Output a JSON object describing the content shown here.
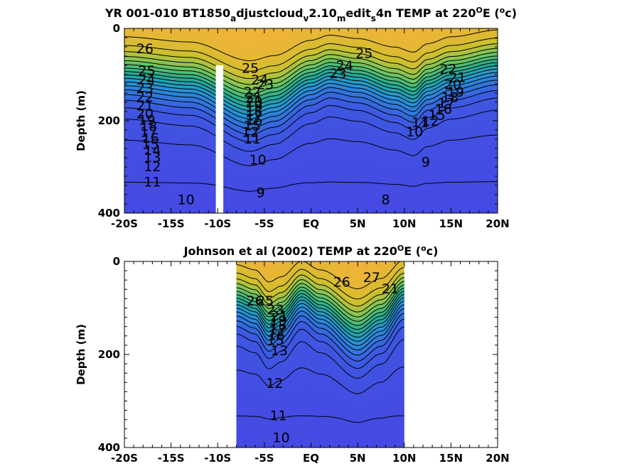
{
  "figure": {
    "colors": {
      "warm": "#f6b13a",
      "mid": "#25ad92",
      "cool": "#4747e3",
      "contour": "#000000"
    }
  },
  "chart_data": [
    {
      "type": "heatmap",
      "title_parts": [
        "YR 001-010 BT1850",
        "a",
        "djustcloud",
        "v",
        "2.10",
        "m",
        "edit",
        "s",
        "4n TEMP at 220",
        "O",
        "E (",
        "o",
        "c)"
      ],
      "ylabel": "Depth (m)",
      "x_ticks": [
        "-20S",
        "-15S",
        "-10S",
        "-5S",
        "EQ",
        "5N",
        "10N",
        "15N",
        "20N"
      ],
      "x_tick_values": [
        -20,
        -15,
        -10,
        -5,
        0,
        5,
        10,
        15,
        20
      ],
      "y_ticks": [
        "0",
        "200",
        "400"
      ],
      "y_tick_values": [
        0,
        200,
        400
      ],
      "xlim": [
        -20,
        20
      ],
      "ylim": [
        0,
        400
      ],
      "y_reversed": true,
      "data_extent_x": [
        -20,
        20
      ],
      "masked_columns": [
        [
          -10.2,
          -9.4
        ]
      ],
      "thermocline": {
        "sst": 27.5,
        "segments": [
          [
            -20,
            95
          ],
          [
            -13,
            110
          ],
          [
            -6.5,
            165
          ],
          [
            -4,
            150
          ],
          [
            0,
            105
          ],
          [
            2,
            90
          ],
          [
            5,
            100
          ],
          [
            9,
            125
          ],
          [
            11,
            140
          ],
          [
            12.5,
            115
          ],
          [
            15,
            95
          ],
          [
            20,
            75
          ]
        ]
      },
      "contour_levels": [
        8,
        9,
        10,
        11,
        12,
        13,
        14,
        15,
        16,
        17,
        18,
        19,
        20,
        21,
        22,
        23,
        24,
        25,
        26
      ],
      "contour_labels": [
        {
          "text": "26",
          "x": -17.8,
          "y": 45
        },
        {
          "text": "25",
          "x": -17.6,
          "y": 93
        },
        {
          "text": "24",
          "x": -17.6,
          "y": 112
        },
        {
          "text": "23",
          "x": -17.8,
          "y": 131
        },
        {
          "text": "22",
          "x": -17.8,
          "y": 150
        },
        {
          "text": "21",
          "x": -17.8,
          "y": 169
        },
        {
          "text": "20",
          "x": -17.8,
          "y": 186
        },
        {
          "text": "19",
          "x": -17.6,
          "y": 200
        },
        {
          "text": "18",
          "x": -17.4,
          "y": 213
        },
        {
          "text": "17",
          "x": -17.4,
          "y": 226
        },
        {
          "text": "16",
          "x": -17.2,
          "y": 239
        },
        {
          "text": "15",
          "x": -17.2,
          "y": 252
        },
        {
          "text": "14",
          "x": -17.0,
          "y": 265
        },
        {
          "text": "13",
          "x": -17.0,
          "y": 281
        },
        {
          "text": "12",
          "x": -17.0,
          "y": 301
        },
        {
          "text": "11",
          "x": -17.0,
          "y": 334
        },
        {
          "text": "10",
          "x": -13.4,
          "y": 372
        },
        {
          "text": "25",
          "x": -6.5,
          "y": 88
        },
        {
          "text": "24",
          "x": -5.5,
          "y": 113
        },
        {
          "text": "23",
          "x": -4.9,
          "y": 123
        },
        {
          "text": "22",
          "x": -6.3,
          "y": 139
        },
        {
          "text": "21",
          "x": -6.1,
          "y": 151
        },
        {
          "text": "20",
          "x": -6.1,
          "y": 161
        },
        {
          "text": "19",
          "x": -6.1,
          "y": 171
        },
        {
          "text": "18",
          "x": -6.1,
          "y": 181
        },
        {
          "text": "17",
          "x": -6.1,
          "y": 191
        },
        {
          "text": "16",
          "x": -6.1,
          "y": 201
        },
        {
          "text": "15",
          "x": -6.3,
          "y": 212
        },
        {
          "text": "12",
          "x": -6.5,
          "y": 226
        },
        {
          "text": "11",
          "x": -6.3,
          "y": 241
        },
        {
          "text": "10",
          "x": -5.7,
          "y": 286
        },
        {
          "text": "9",
          "x": -5.4,
          "y": 357
        },
        {
          "text": "25",
          "x": 5.7,
          "y": 55
        },
        {
          "text": "24",
          "x": 3.6,
          "y": 82
        },
        {
          "text": "23",
          "x": 2.9,
          "y": 99
        },
        {
          "text": "8",
          "x": 8.0,
          "y": 372
        },
        {
          "text": "9",
          "x": 12.3,
          "y": 291
        },
        {
          "text": "22",
          "x": 14.7,
          "y": 90
        },
        {
          "text": "21",
          "x": 15.7,
          "y": 108
        },
        {
          "text": "20",
          "x": 15.2,
          "y": 123
        },
        {
          "text": "19",
          "x": 15.5,
          "y": 139
        },
        {
          "text": "18",
          "x": 14.9,
          "y": 151
        },
        {
          "text": "17",
          "x": 14.5,
          "y": 163
        },
        {
          "text": "16",
          "x": 14.2,
          "y": 176
        },
        {
          "text": "15",
          "x": 13.5,
          "y": 189
        },
        {
          "text": "12",
          "x": 12.8,
          "y": 202
        },
        {
          "text": "11",
          "x": 11.7,
          "y": 205
        },
        {
          "text": "10",
          "x": 11.1,
          "y": 225
        }
      ]
    },
    {
      "type": "heatmap",
      "title_parts": [
        "Johnson et al (2002) TEMP at 220",
        "O",
        "E (",
        "o",
        "c)"
      ],
      "ylabel": "Depth (m)",
      "x_ticks": [
        "-20S",
        "-15S",
        "-10S",
        "-5S",
        "EQ",
        "5N",
        "10N",
        "15N",
        "20N"
      ],
      "x_tick_values": [
        -20,
        -15,
        -10,
        -5,
        0,
        5,
        10,
        15,
        20
      ],
      "y_ticks": [
        "0",
        "200",
        "400"
      ],
      "y_tick_values": [
        0,
        200,
        400
      ],
      "xlim": [
        -20,
        20
      ],
      "ylim": [
        0,
        400
      ],
      "y_reversed": true,
      "data_extent_x": [
        -8,
        10
      ],
      "masked_columns": [],
      "thermocline": {
        "sst": 28.5,
        "segments": [
          [
            -8,
            80
          ],
          [
            -6,
            95
          ],
          [
            -4.5,
            130
          ],
          [
            -3.2,
            115
          ],
          [
            -1,
            70
          ],
          [
            1,
            95
          ],
          [
            5,
            150
          ],
          [
            7.5,
            120
          ],
          [
            10,
            65
          ]
        ]
      },
      "contour_levels": [
        9,
        10,
        11,
        12,
        13,
        14,
        15,
        16,
        17,
        18,
        19,
        20,
        21,
        22,
        23,
        24,
        25,
        26,
        27
      ],
      "contour_labels": [
        {
          "text": "27",
          "x": 6.5,
          "y": 36
        },
        {
          "text": "26",
          "x": 3.3,
          "y": 46
        },
        {
          "text": "26",
          "x": -6.0,
          "y": 86
        },
        {
          "text": "25",
          "x": -4.9,
          "y": 86
        },
        {
          "text": "23",
          "x": -3.8,
          "y": 105
        },
        {
          "text": "21",
          "x": -3.4,
          "y": 118
        },
        {
          "text": "19",
          "x": -3.5,
          "y": 128
        },
        {
          "text": "18",
          "x": -3.5,
          "y": 139
        },
        {
          "text": "17",
          "x": -3.6,
          "y": 149
        },
        {
          "text": "16",
          "x": -3.7,
          "y": 160
        },
        {
          "text": "15",
          "x": -3.8,
          "y": 171
        },
        {
          "text": "13",
          "x": -3.4,
          "y": 193
        },
        {
          "text": "12",
          "x": -3.9,
          "y": 263
        },
        {
          "text": "11",
          "x": -3.5,
          "y": 333
        },
        {
          "text": "10",
          "x": -3.2,
          "y": 380
        },
        {
          "text": "21",
          "x": 8.5,
          "y": 60
        }
      ]
    }
  ]
}
